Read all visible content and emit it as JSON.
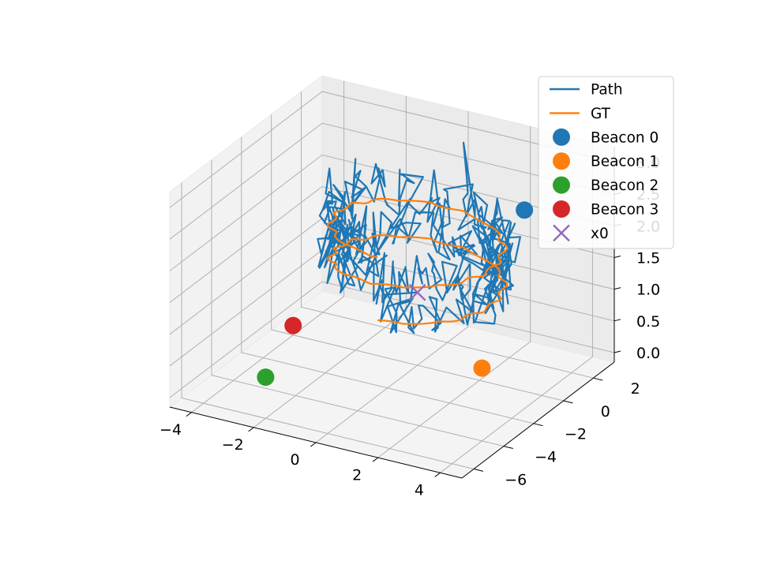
{
  "chart_data": {
    "type": "line3d",
    "view": {
      "elevation_deg": 30,
      "azimuth_deg": -60
    },
    "axes": {
      "xlim": [
        -4.7,
        4.7
      ],
      "ylim": [
        -6.8,
        3.4
      ],
      "zlim": [
        -0.15,
        3.25
      ],
      "xticks": [
        -4,
        -2,
        0,
        2,
        4
      ],
      "yticks": [
        -6,
        -4,
        -2,
        0,
        2
      ],
      "zticks": [
        0.0,
        0.5,
        1.0,
        1.5,
        2.0,
        2.5,
        3.0
      ],
      "xtick_labels": [
        "−4",
        "−2",
        "0",
        "2",
        "4"
      ],
      "ytick_labels": [
        "−6",
        "−4",
        "−2",
        "0",
        "2"
      ],
      "ztick_labels": [
        "0.0",
        "0.5",
        "1.0",
        "1.5",
        "2.0",
        "2.5",
        "3.0"
      ],
      "grid": true
    },
    "legend": {
      "position": "upper right",
      "entries": [
        {
          "label": "Path",
          "marker": "line",
          "color": "#1f77b4"
        },
        {
          "label": "GT",
          "marker": "line",
          "color": "#ff7f0e"
        },
        {
          "label": "Beacon 0",
          "marker": "circle",
          "color": "#1f77b4"
        },
        {
          "label": "Beacon 1",
          "marker": "circle",
          "color": "#ff7f0e"
        },
        {
          "label": "Beacon 2",
          "marker": "circle",
          "color": "#2ca02c"
        },
        {
          "label": "Beacon 3",
          "marker": "circle",
          "color": "#d62728"
        },
        {
          "label": "x0",
          "marker": "x",
          "color": "#9467bd"
        }
      ]
    },
    "beacons": [
      {
        "name": "Beacon 0",
        "color": "#1f77b4",
        "x": 2.0,
        "y": 3.0,
        "z": 2.0
      },
      {
        "name": "Beacon 1",
        "color": "#ff7f0e",
        "x": 4.0,
        "y": -4.0,
        "z": 1.0
      },
      {
        "name": "Beacon 2",
        "color": "#2ca02c",
        "x": -2.0,
        "y": -6.0,
        "z": 0.5
      },
      {
        "name": "Beacon 3",
        "color": "#d62728",
        "x": -4.0,
        "y": 0.0,
        "z": 0.0
      }
    ],
    "x0": {
      "name": "x0",
      "color": "#9467bd",
      "x": 0.0,
      "y": 0.0,
      "z": 1.0
    },
    "gt": {
      "name": "GT",
      "color": "#ff7f0e",
      "center": [
        0,
        0
      ],
      "radius_x": 2.5,
      "radius_y": 2.5,
      "z_start": 1.0,
      "z_end": 2.0,
      "turns": 2,
      "samples": 400
    },
    "path": {
      "name": "Path",
      "color": "#1f77b4",
      "noise_xy": 0.35,
      "noise_z": 0.4,
      "samples": 400
    }
  }
}
